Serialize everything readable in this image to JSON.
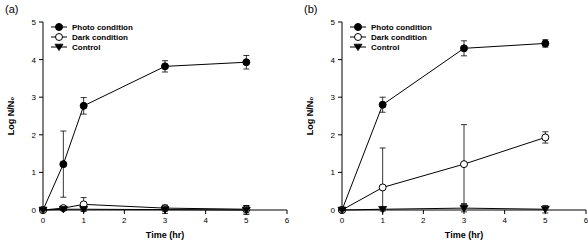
{
  "chart_data": [
    {
      "type": "line",
      "title": "(a)",
      "x_label": "Time (hr)",
      "y_label": "Log N/N₀",
      "x": [
        0,
        0.5,
        1,
        3,
        5
      ],
      "xlim": [
        0,
        6
      ],
      "xticks": [
        0,
        1,
        2,
        3,
        4,
        5,
        6
      ],
      "ylim": [
        0,
        5
      ],
      "yticks": [
        0,
        1,
        2,
        3,
        4,
        5
      ],
      "legend": "top-left",
      "series": [
        {
          "name": "Photo condition",
          "color": "#000000",
          "marker": "circle",
          "values": [
            0,
            1.22,
            2.77,
            3.82,
            3.93
          ],
          "errors": [
            0,
            0.88,
            0.22,
            0.15,
            0.18
          ]
        },
        {
          "name": "Dark condition",
          "color": "#000000",
          "marker": "circle-open",
          "values": [
            0,
            0.05,
            0.15,
            0.05,
            0.02
          ],
          "errors": [
            0,
            0.05,
            0.18,
            0.08,
            0.1
          ]
        },
        {
          "name": "Control",
          "color": "#000000",
          "marker": "triangle-down",
          "values": [
            0,
            0.02,
            0.02,
            0.01,
            0
          ],
          "errors": [
            0,
            0.03,
            0.05,
            0.1,
            0.12
          ]
        }
      ]
    },
    {
      "type": "line",
      "title": "(b)",
      "x_label": "Time (hr)",
      "y_label": "Log N/N₀",
      "x": [
        0,
        1,
        3,
        5
      ],
      "xlim": [
        0,
        6
      ],
      "xticks": [
        0,
        1,
        2,
        3,
        4,
        5,
        6
      ],
      "ylim": [
        0,
        5
      ],
      "yticks": [
        0,
        1,
        2,
        3,
        4,
        5
      ],
      "legend": "top-left",
      "series": [
        {
          "name": "Photo condition",
          "color": "#000000",
          "marker": "circle",
          "values": [
            0,
            2.8,
            4.3,
            4.43
          ],
          "errors": [
            0,
            0.2,
            0.2,
            0.1
          ]
        },
        {
          "name": "Dark condition",
          "color": "#000000",
          "marker": "circle-open",
          "values": [
            0,
            0.6,
            1.22,
            1.93
          ],
          "errors": [
            0,
            1.05,
            1.05,
            0.15
          ]
        },
        {
          "name": "Control",
          "color": "#000000",
          "marker": "triangle-down",
          "values": [
            0,
            0.02,
            0.05,
            0.02
          ],
          "errors": [
            0,
            0.05,
            0.1,
            0.1
          ]
        }
      ]
    }
  ]
}
